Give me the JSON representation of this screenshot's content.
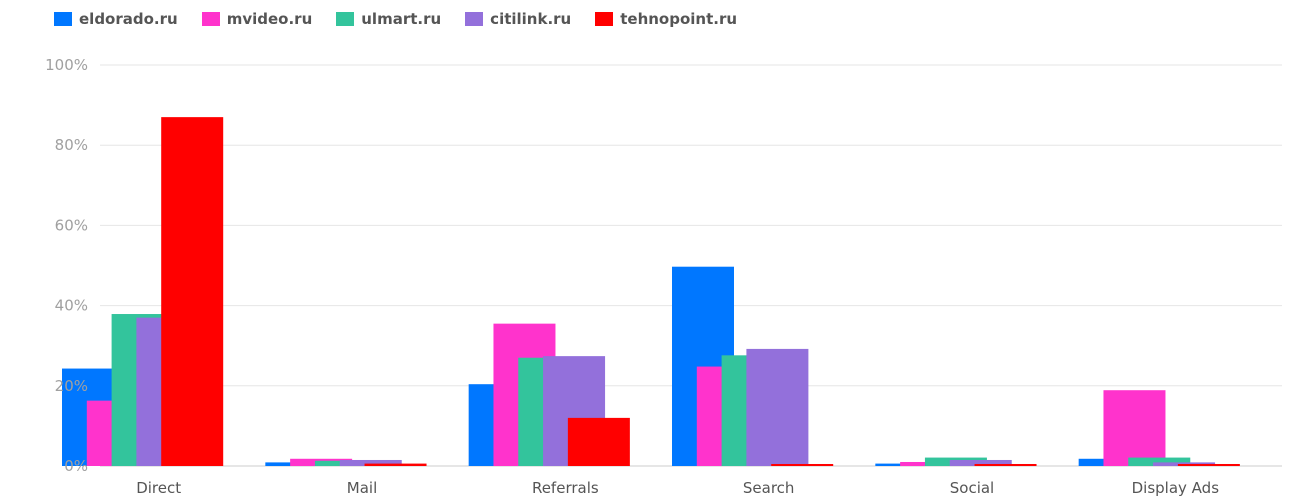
{
  "chart_data": {
    "type": "bar",
    "categories": [
      "Direct",
      "Mail",
      "Referrals",
      "Search",
      "Social",
      "Display Ads"
    ],
    "series": [
      {
        "name": "eldorado.ru",
        "color": "#0077ff",
        "values": [
          24.3,
          0.9,
          20.4,
          49.7,
          0.6,
          1.8
        ]
      },
      {
        "name": "mvideo.ru",
        "color": "#ff33cc",
        "values": [
          16.3,
          1.8,
          35.5,
          24.8,
          1.0,
          18.9
        ]
      },
      {
        "name": "ulmart.ru",
        "color": "#33c49c",
        "values": [
          37.9,
          1.3,
          27.0,
          27.6,
          2.1,
          2.1
        ]
      },
      {
        "name": "citilink.ru",
        "color": "#9370db",
        "values": [
          37.0,
          1.5,
          27.4,
          29.2,
          1.5,
          0.9
        ]
      },
      {
        "name": "tehnopoint.ru",
        "color": "#ff0000",
        "values": [
          87.0,
          0.6,
          12.0,
          0.5,
          0.5,
          0.5
        ]
      }
    ],
    "yticks": [
      "0%",
      "20%",
      "40%",
      "60%",
      "80%",
      "100%"
    ],
    "ylim": [
      0,
      100
    ],
    "grid": true,
    "legend": "top-left"
  }
}
